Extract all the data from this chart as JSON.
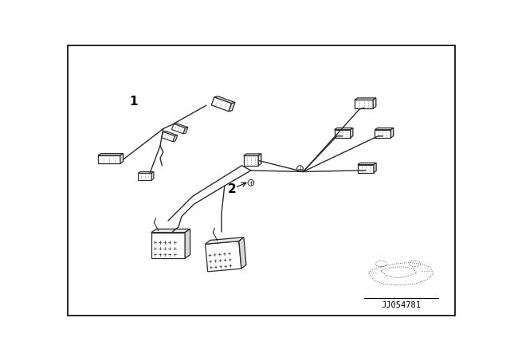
{
  "bg_color": "#ffffff",
  "border_color": "#000000",
  "line_color": "#2a2a2a",
  "fig_width": 6.4,
  "fig_height": 4.48,
  "label_1": "1",
  "label_2": "2",
  "part_number": "JJ054781",
  "dpi": 100
}
